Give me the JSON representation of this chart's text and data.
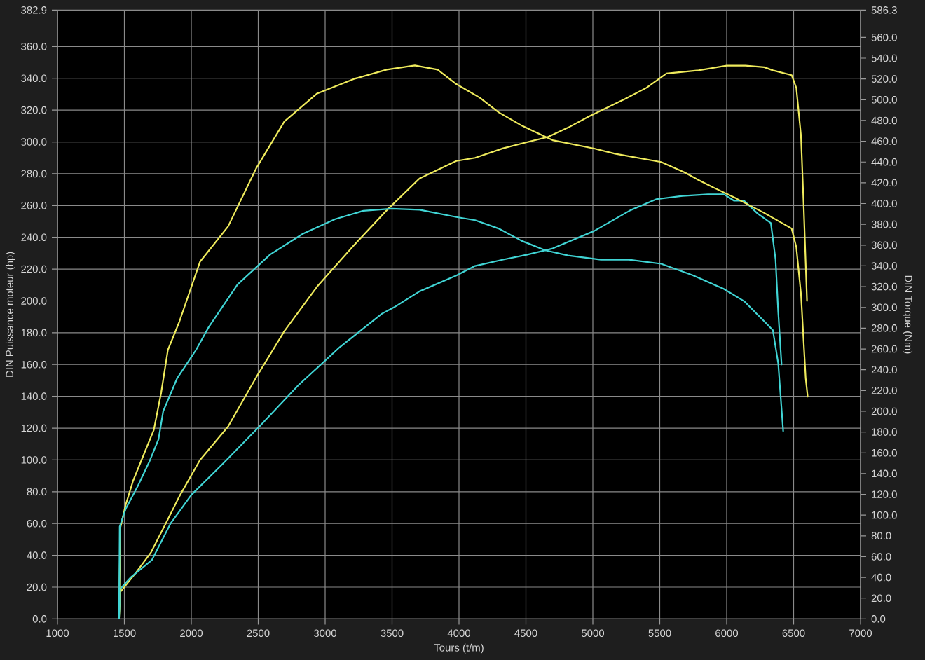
{
  "chart_data": {
    "type": "line",
    "xlabel": "Tours (t/m)",
    "ylabel": "DIN Puissance moteur (hp)",
    "y2label": "DIN Torque (Nm)",
    "xlim": [
      1000,
      7000
    ],
    "xticks": [
      1000,
      1500,
      2000,
      2500,
      3000,
      3500,
      4000,
      4500,
      5000,
      5500,
      6000,
      6500,
      7000
    ],
    "ylim": [
      0,
      382.9
    ],
    "yticks": [
      {
        "value": 0,
        "label": "0.0"
      },
      {
        "value": 20,
        "label": "20.0"
      },
      {
        "value": 40,
        "label": "40.0"
      },
      {
        "value": 60,
        "label": "60.0"
      },
      {
        "value": 80,
        "label": "80.0"
      },
      {
        "value": 100,
        "label": "100.0"
      },
      {
        "value": 120,
        "label": "120.0"
      },
      {
        "value": 140,
        "label": "140.0"
      },
      {
        "value": 160,
        "label": "160.0"
      },
      {
        "value": 180,
        "label": "180.0"
      },
      {
        "value": 200,
        "label": "200.0"
      },
      {
        "value": 220,
        "label": "220.0"
      },
      {
        "value": 240,
        "label": "240.0"
      },
      {
        "value": 260,
        "label": "260.0"
      },
      {
        "value": 280,
        "label": "280.0"
      },
      {
        "value": 300,
        "label": "300.0"
      },
      {
        "value": 320,
        "label": "320.0"
      },
      {
        "value": 340,
        "label": "340.0"
      },
      {
        "value": 360,
        "label": "360.0"
      },
      382.9
    ],
    "y2lim": [
      0,
      586.3
    ],
    "y2ticks": [
      {
        "value": 0,
        "label": "0.0"
      },
      {
        "value": 20,
        "label": "20.0"
      },
      {
        "value": 40,
        "label": "40.0"
      },
      {
        "value": 60,
        "label": "60.0"
      },
      {
        "value": 80,
        "label": "80.0"
      },
      {
        "value": 100,
        "label": "100.0"
      },
      {
        "value": 120,
        "label": "120.0"
      },
      {
        "value": 140,
        "label": "140.0"
      },
      {
        "value": 160,
        "label": "160.0"
      },
      {
        "value": 180,
        "label": "180.0"
      },
      {
        "value": 200,
        "label": "200.0"
      },
      {
        "value": 220,
        "label": "220.0"
      },
      {
        "value": 240,
        "label": "240.0"
      },
      {
        "value": 260,
        "label": "260.0"
      },
      {
        "value": 280,
        "label": "280.0"
      },
      {
        "value": 300,
        "label": "300.0"
      },
      {
        "value": 320,
        "label": "320.0"
      },
      {
        "value": 340,
        "label": "340.0"
      },
      {
        "value": 360,
        "label": "360.0"
      },
      {
        "value": 380,
        "label": "380.0"
      },
      {
        "value": 400,
        "label": "400.0"
      },
      {
        "value": 420,
        "label": "420.0"
      },
      {
        "value": 440,
        "label": "440.0"
      },
      {
        "value": 460,
        "label": "460.0"
      },
      {
        "value": 480,
        "label": "480.0"
      },
      {
        "value": 500,
        "label": "500.0"
      },
      {
        "value": 520,
        "label": "520.0"
      },
      {
        "value": 540,
        "label": "540.0"
      },
      {
        "value": 560,
        "label": "560.0"
      },
      586.3
    ],
    "grid": true,
    "line_style": "solid",
    "series": [
      {
        "color": "#eeea5c",
        "x": [
          1460,
          1470,
          1585,
          1700,
          1815,
          1910,
          2065,
          2275,
          2485,
          2695,
          2940,
          3215,
          3460,
          3705,
          3980,
          4120,
          4330,
          4470,
          4660,
          4815,
          4970,
          5240,
          5400,
          5550,
          5790,
          6000,
          6140,
          6280,
          6345,
          6485,
          6520,
          6555,
          6575,
          6600
        ],
        "values": [
          0,
          17,
          29,
          42,
          61,
          77,
          100,
          121,
          152,
          181,
          209,
          235,
          257,
          277,
          288,
          290,
          296,
          299,
          303,
          309,
          316,
          327,
          334,
          343,
          345,
          348,
          348,
          347,
          345,
          342,
          334,
          304,
          260,
          200
        ]
      },
      {
        "color": "#eeea5c",
        "axis": "y2",
        "x": [
          1460,
          1470,
          1510,
          1565,
          1650,
          1720,
          1775,
          1825,
          1910,
          2065,
          2275,
          2485,
          2695,
          2940,
          3215,
          3460,
          3670,
          3840,
          3980,
          4155,
          4295,
          4470,
          4700,
          5010,
          5165,
          5510,
          5685,
          5785,
          5860,
          6070,
          6280,
          6485,
          6520,
          6555,
          6590,
          6605
        ],
        "values": [
          0,
          88,
          110,
          133,
          160,
          182,
          218,
          259,
          286,
          344,
          378,
          434,
          479,
          506,
          520,
          529,
          533,
          529,
          515,
          502,
          488,
          475,
          461,
          453,
          448,
          440,
          430,
          423,
          418,
          405,
          391,
          376,
          358,
          313,
          232,
          214
        ]
      },
      {
        "color": "#40d4d4",
        "x": [
          1460,
          1470,
          1545,
          1705,
          1845,
          2000,
          2240,
          2520,
          2800,
          3110,
          3425,
          3515,
          3705,
          3980,
          4120,
          4330,
          4505,
          4700,
          5010,
          5280,
          5475,
          5670,
          5860,
          5980,
          6055,
          6130,
          6230,
          6330,
          6365,
          6385,
          6410
        ],
        "values": [
          0,
          19,
          26,
          37,
          60,
          78,
          98,
          122,
          147,
          171,
          192,
          196,
          206,
          216,
          222,
          226,
          229,
          233,
          244,
          257,
          264,
          266,
          267,
          267,
          263,
          263,
          255,
          249,
          226,
          193,
          160
        ]
      },
      {
        "color": "#40d4d4",
        "axis": "y2",
        "x": [
          1460,
          1465,
          1510,
          1600,
          1685,
          1755,
          1790,
          1895,
          2035,
          2130,
          2345,
          2590,
          2835,
          3075,
          3285,
          3495,
          3705,
          3980,
          4120,
          4295,
          4470,
          4645,
          4815,
          5060,
          5270,
          5510,
          5745,
          5975,
          6130,
          6285,
          6345,
          6385,
          6422
        ],
        "values": [
          0,
          89,
          106,
          128,
          151,
          173,
          200,
          232,
          259,
          281,
          322,
          351,
          371,
          385,
          393,
          395,
          394,
          387,
          384,
          376,
          364,
          355,
          350,
          346,
          346,
          342,
          331,
          318,
          306,
          286,
          278,
          246,
          181
        ]
      }
    ]
  }
}
